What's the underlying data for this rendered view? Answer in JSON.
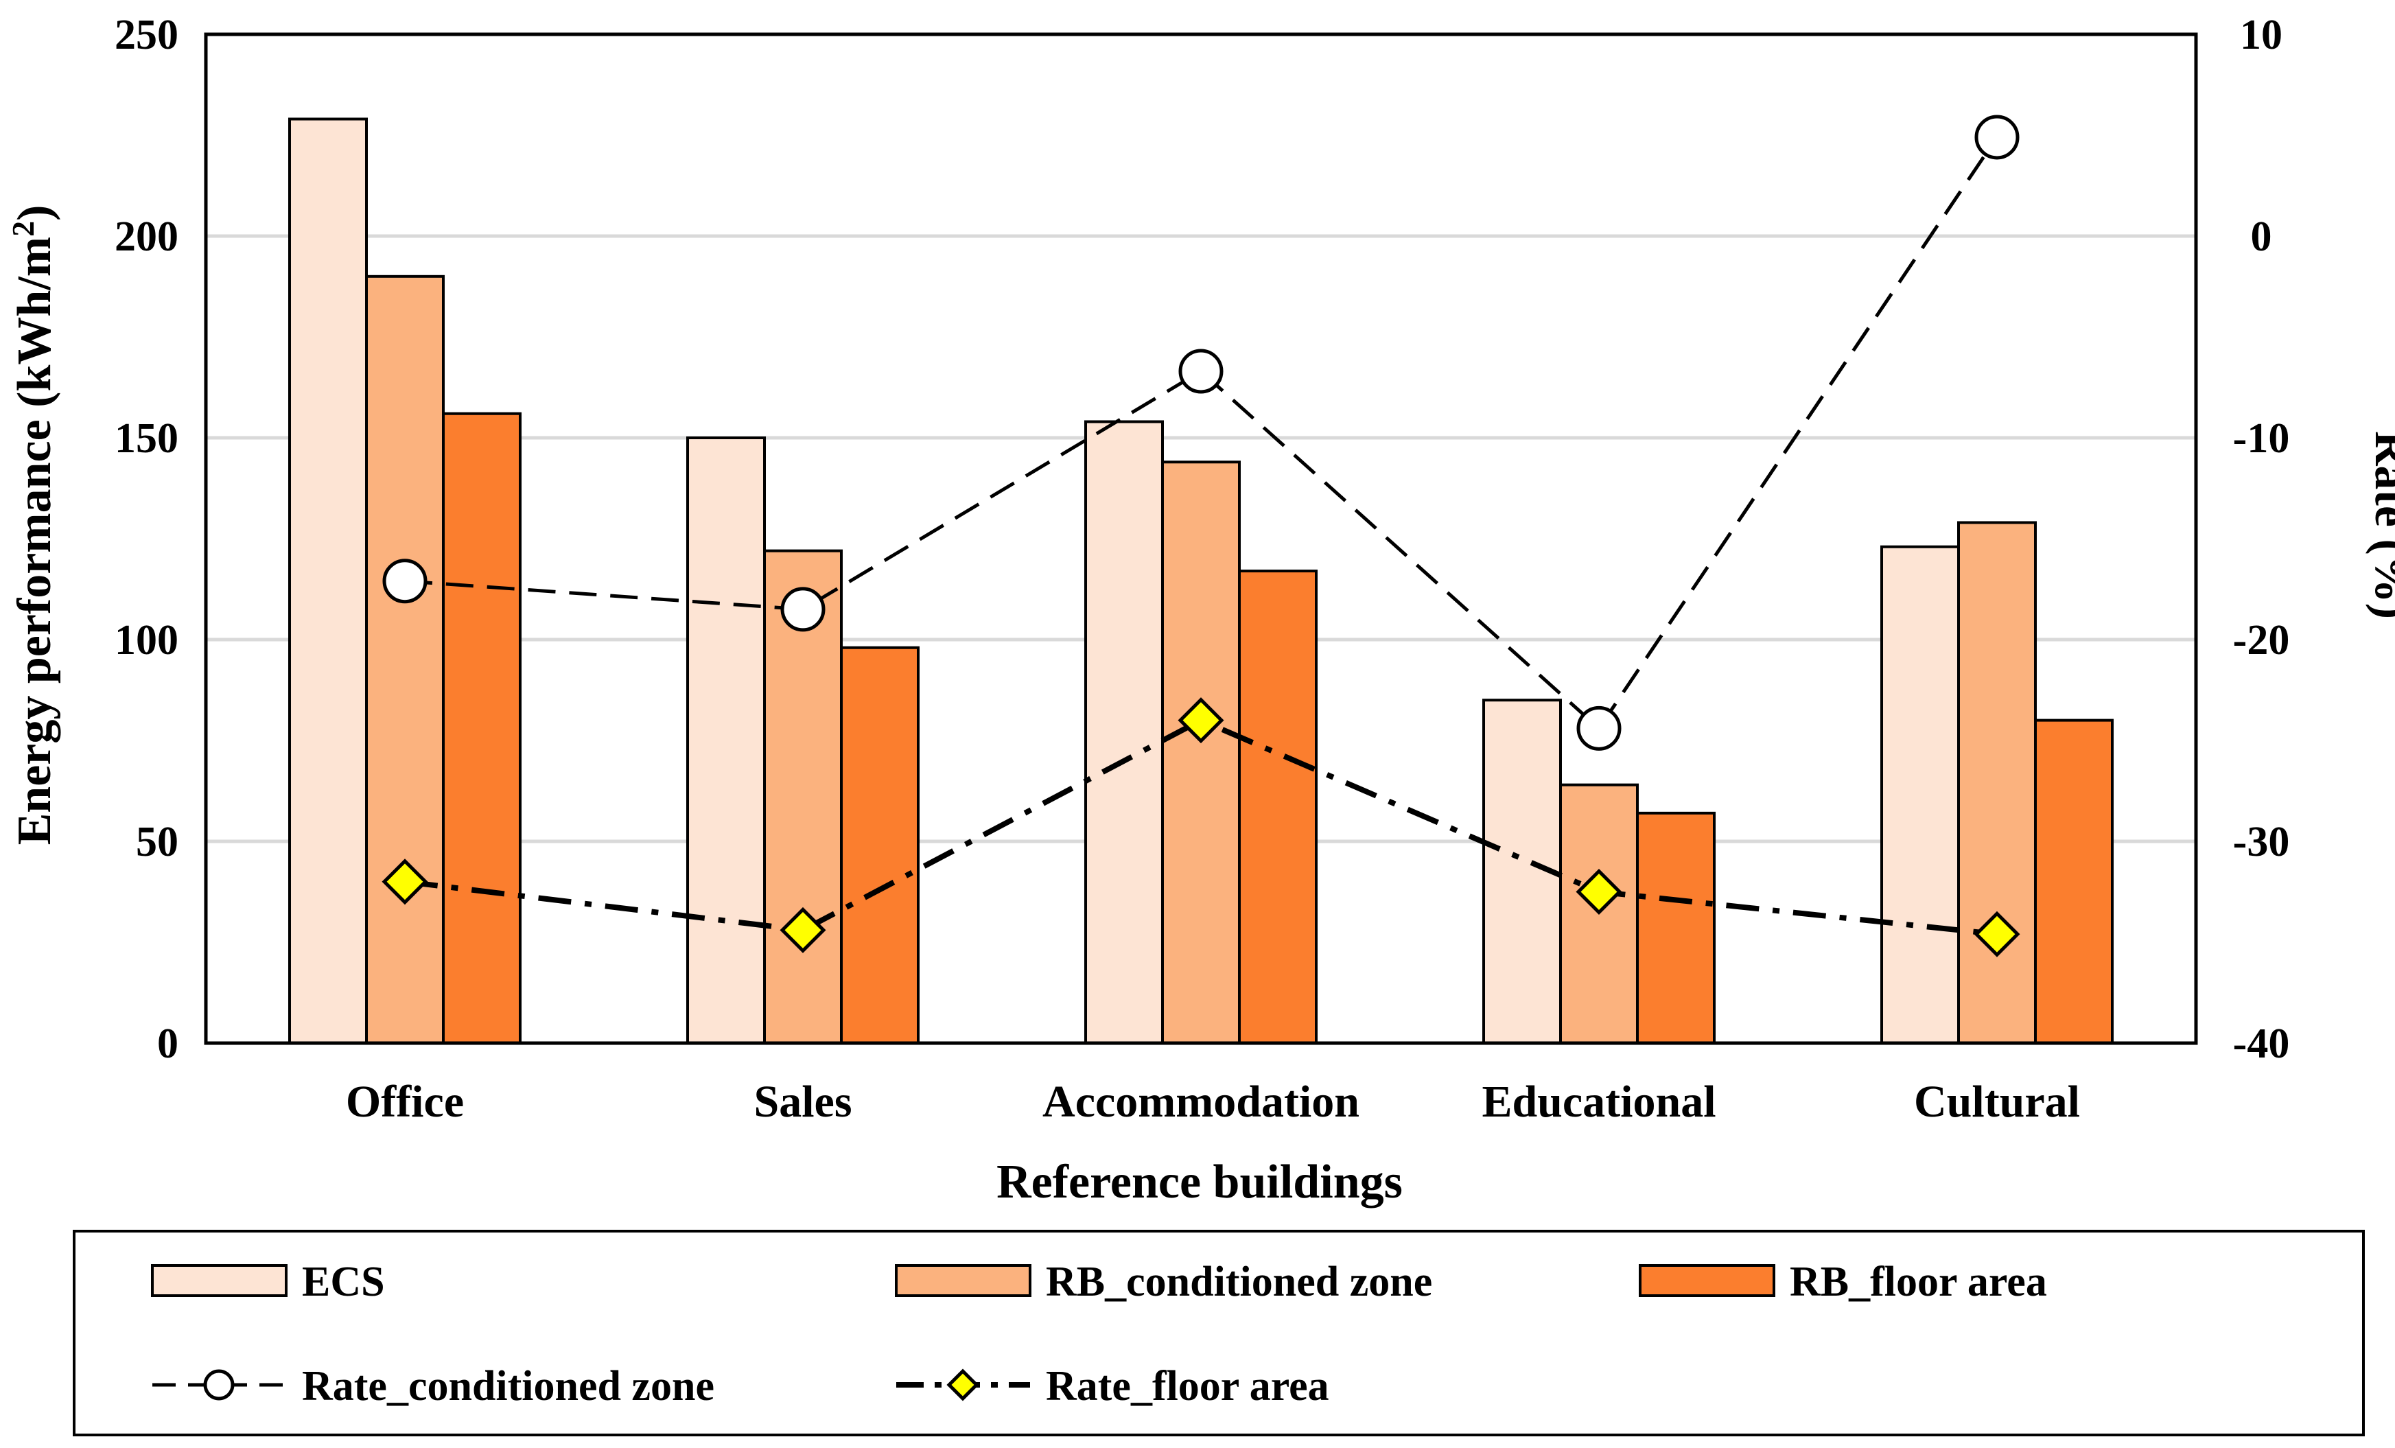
{
  "chart_data": {
    "type": "bar",
    "categories": [
      "Office",
      "Sales",
      "Accommodation",
      "Educational",
      "Cultural"
    ],
    "series": [
      {
        "name": "ECS",
        "axis": "left",
        "kind": "bar",
        "color": "#FDE4D4",
        "values": [
          229,
          150,
          154,
          85,
          123
        ]
      },
      {
        "name": "RB_conditioned zone",
        "axis": "left",
        "kind": "bar",
        "color": "#FBB27E",
        "values": [
          190,
          122,
          144,
          64,
          129
        ]
      },
      {
        "name": "RB_floor area",
        "axis": "left",
        "kind": "bar",
        "color": "#FB7E2E",
        "values": [
          156,
          98,
          117,
          57,
          80
        ]
      },
      {
        "name": "Rate_conditioned zone",
        "axis": "right",
        "kind": "line",
        "color": "#000000",
        "marker": "circle",
        "marker_fill": "#FFFFFF",
        "values": [
          -17.1,
          -18.5,
          -6.7,
          -24.4,
          4.9
        ]
      },
      {
        "name": "Rate_floor area",
        "axis": "right",
        "kind": "line",
        "color": "#000000",
        "marker": "diamond",
        "marker_fill": "#FFFF00",
        "values": [
          -32.0,
          -34.4,
          -24.0,
          -32.5,
          -34.6
        ]
      }
    ],
    "xlabel": "Reference buildings",
    "ylabel_prefix": "Energy performance (kWh/m",
    "ylabel_sup": "2",
    "ylabel_suffix": ")",
    "y2label": "Rate (%)",
    "ylim": [
      0,
      250
    ],
    "yticks": [
      0,
      50,
      100,
      150,
      200,
      250
    ],
    "y2lim": [
      -40,
      10
    ],
    "y2ticks": [
      -40,
      -30,
      -20,
      -10,
      0,
      10
    ],
    "grid": true,
    "legend_position": "bottom"
  }
}
